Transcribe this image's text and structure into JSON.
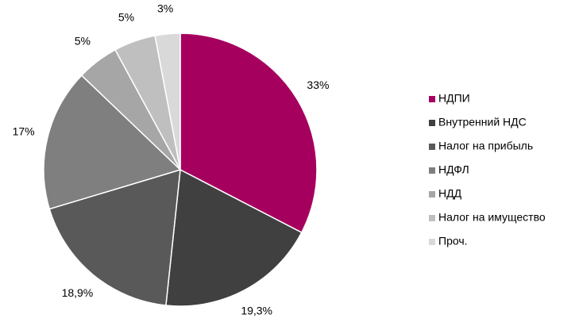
{
  "chart_data": {
    "type": "pie",
    "categories": [
      "НДПИ",
      "Внутренний НДС",
      "Налог на прибыль",
      "НДФЛ",
      "НДД",
      "Налог на имущество",
      "Проч."
    ],
    "values": [
      33,
      19.3,
      18.9,
      17,
      5,
      5,
      3
    ],
    "value_labels": [
      "33%",
      "19,3%",
      "18,9%",
      "17%",
      "5%",
      "5%",
      "3%"
    ],
    "colors": [
      "#a6005f",
      "#404040",
      "#595959",
      "#7f7f7f",
      "#a6a6a6",
      "#bfbfbf",
      "#d9d9d9"
    ],
    "legend": "right"
  }
}
